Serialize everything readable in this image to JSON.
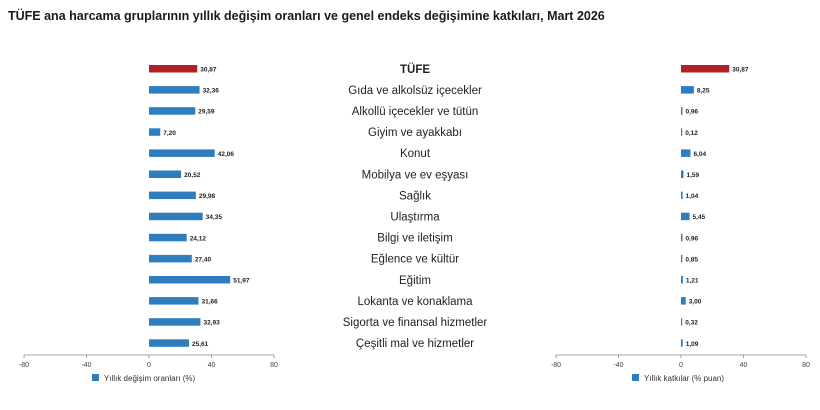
{
  "title": "TÜFE ana harcama gruplarının yıllık değişim oranları ve genel endeks değişimine katkıları, Mart 2026",
  "colors": {
    "highlight": "#b22027",
    "bar": "#2e7ebf",
    "axis": "#888888"
  },
  "chart_data": [
    {
      "type": "bar",
      "orientation": "horizontal",
      "legend": "Yıllık değişim oranları (%)",
      "legend_position": "bottom-left",
      "xlim": [
        -80,
        80
      ],
      "xticks": [
        "-80",
        "-40",
        "0",
        "40",
        "80"
      ],
      "grid": false,
      "categories": [
        "TÜFE",
        "Gıda ve alkolsüz içecekler",
        "Alkollü içecekler ve tütün",
        "Giyim ve ayakkabı",
        "Konut",
        "Mobilya ve ev eşyası",
        "Sağlık",
        "Ulaştırma",
        "Bilgi ve iletişim",
        "Eğlence ve kültür",
        "Eğitim",
        "Lokanta ve konaklama",
        "Sigorta ve finansal hizmetler",
        "Çeşitli mal ve hizmetler"
      ],
      "values": [
        30.87,
        32.36,
        29.59,
        7.2,
        42.06,
        20.52,
        29.98,
        34.35,
        24.12,
        27.4,
        51.97,
        31.66,
        32.93,
        25.61
      ],
      "labels": [
        "30,87",
        "32,36",
        "29,59",
        "7,20",
        "42,06",
        "20,52",
        "29,98",
        "34,35",
        "24,12",
        "27,40",
        "51,97",
        "31,66",
        "32,93",
        "25,61"
      ]
    },
    {
      "type": "bar",
      "orientation": "horizontal",
      "legend": "Yıllık katkılar (% puan)",
      "legend_position": "bottom-left",
      "xlim": [
        -80,
        80
      ],
      "xticks": [
        "-80",
        "-40",
        "0",
        "40",
        "80"
      ],
      "grid": false,
      "categories": [
        "TÜFE",
        "Gıda ve alkolsüz içecekler",
        "Alkollü içecekler ve tütün",
        "Giyim ve ayakkabı",
        "Konut",
        "Mobilya ve ev eşyası",
        "Sağlık",
        "Ulaştırma",
        "Bilgi ve iletişim",
        "Eğlence ve kültür",
        "Eğitim",
        "Lokanta ve konaklama",
        "Sigorta ve finansal hizmetler",
        "Çeşitli mal ve hizmetler"
      ],
      "values": [
        30.87,
        8.25,
        0.96,
        0.12,
        6.04,
        1.59,
        1.04,
        5.45,
        0.96,
        0.85,
        1.21,
        3.0,
        0.32,
        1.09
      ],
      "labels": [
        "30,87",
        "8,25",
        "0,96",
        "0,12",
        "6,04",
        "1,59",
        "1,04",
        "5,45",
        "0,96",
        "0,85",
        "1,21",
        "3,00",
        "0,32",
        "1,09"
      ]
    }
  ]
}
